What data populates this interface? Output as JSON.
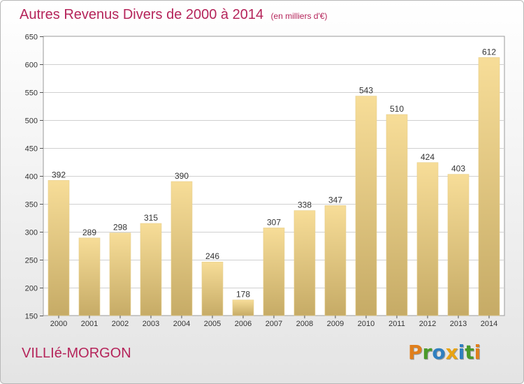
{
  "title": "Autres Revenus Divers de 2000 à 2014",
  "subtitle": "(en milliers d'€)",
  "place": "VILLIé-MORGON",
  "logo": {
    "text": "Proxiti",
    "letters": [
      {
        "ch": "P",
        "color": "#e07f1c"
      },
      {
        "ch": "r",
        "color": "#4a9a2a"
      },
      {
        "ch": "o",
        "color": "#2f7fc0"
      },
      {
        "ch": "x",
        "color": "#e8a313"
      },
      {
        "ch": "i",
        "color": "#2f7fc0"
      },
      {
        "ch": "t",
        "color": "#4a9a2a"
      },
      {
        "ch": "i",
        "color": "#e07f1c"
      }
    ]
  },
  "colors": {
    "title": "#b5245a",
    "bar_top": "#f7dd98",
    "bar_bottom": "#c6ab66",
    "grid": "#d0d0d0"
  },
  "chart_data": {
    "type": "bar",
    "categories": [
      "2000",
      "2001",
      "2002",
      "2003",
      "2004",
      "2005",
      "2006",
      "2007",
      "2008",
      "2009",
      "2010",
      "2011",
      "2012",
      "2013",
      "2014"
    ],
    "values": [
      392,
      289,
      298,
      315,
      390,
      246,
      178,
      307,
      338,
      347,
      543,
      510,
      424,
      403,
      612
    ],
    "ylim": [
      150,
      650
    ],
    "yticks": [
      150,
      200,
      250,
      300,
      350,
      400,
      450,
      500,
      550,
      600,
      650
    ],
    "grid": true,
    "title": "Autres Revenus Divers de 2000 à 2014",
    "xlabel": "",
    "ylabel": ""
  }
}
